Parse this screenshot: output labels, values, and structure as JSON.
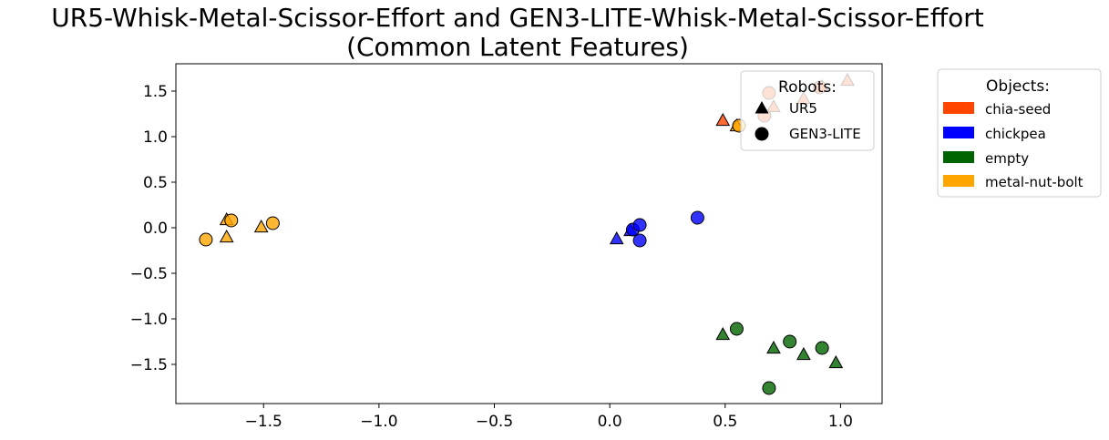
{
  "chart_data": {
    "type": "scatter",
    "title_line1": "UR5-Whisk-Metal-Scissor-Effort and GEN3-LITE-Whisk-Metal-Scissor-Effort",
    "title_line2": "(Common Latent Features)",
    "xlabel": "",
    "ylabel": "",
    "xlim": [
      -1.88,
      1.18
    ],
    "ylim": [
      -1.93,
      1.8
    ],
    "xticks": [
      -1.5,
      -1.0,
      -0.5,
      0.0,
      0.5,
      1.0
    ],
    "xtick_labels": [
      "−1.5",
      "−1.0",
      "−0.5",
      "0.0",
      "0.5",
      "1.0"
    ],
    "yticks": [
      1.5,
      1.0,
      0.5,
      0.0,
      -0.5,
      -1.0,
      -1.5
    ],
    "ytick_labels": [
      "1.5",
      "1.0",
      "0.5",
      "0.0",
      "−0.5",
      "−1.0",
      "−1.5"
    ],
    "grid": false,
    "robots_legend": {
      "title": "Robots:",
      "placement": "top-right",
      "items": [
        {
          "label": "UR5",
          "marker": "triangle"
        },
        {
          "label": "GEN3-LITE",
          "marker": "circle"
        }
      ]
    },
    "objects_legend": {
      "title": "Objects:",
      "placement": "outside-right",
      "items": [
        {
          "label": "chia-seed",
          "color": "#ff4500"
        },
        {
          "label": "chickpea",
          "color": "#0000ff"
        },
        {
          "label": "empty",
          "color": "#006400"
        },
        {
          "label": "metal-nut-bolt",
          "color": "#ffa500"
        }
      ]
    },
    "series": [
      {
        "object": "chia-seed",
        "robot": "UR5",
        "color": "#ff4500",
        "marker": "triangle",
        "points": [
          [
            0.49,
            1.18
          ],
          [
            0.71,
            1.33
          ],
          [
            0.84,
            1.42
          ],
          [
            0.92,
            1.55
          ],
          [
            1.03,
            1.62
          ]
        ]
      },
      {
        "object": "chia-seed",
        "robot": "GEN3-LITE",
        "color": "#ff4500",
        "marker": "circle",
        "points": [
          [
            0.67,
            1.23
          ],
          [
            0.69,
            1.48
          ],
          [
            0.91,
            1.54
          ]
        ]
      },
      {
        "object": "chickpea",
        "robot": "UR5",
        "color": "#0000ff",
        "marker": "triangle",
        "points": [
          [
            0.03,
            -0.12
          ],
          [
            0.09,
            -0.03
          ]
        ]
      },
      {
        "object": "chickpea",
        "robot": "GEN3-LITE",
        "color": "#0000ff",
        "marker": "circle",
        "points": [
          [
            0.1,
            -0.02
          ],
          [
            0.13,
            0.03
          ],
          [
            0.13,
            -0.14
          ],
          [
            0.38,
            0.11
          ]
        ]
      },
      {
        "object": "empty",
        "robot": "UR5",
        "color": "#006400",
        "marker": "triangle",
        "points": [
          [
            0.49,
            -1.17
          ],
          [
            0.71,
            -1.32
          ],
          [
            0.84,
            -1.39
          ],
          [
            0.98,
            -1.48
          ]
        ]
      },
      {
        "object": "empty",
        "robot": "GEN3-LITE",
        "color": "#006400",
        "marker": "circle",
        "points": [
          [
            0.55,
            -1.11
          ],
          [
            0.78,
            -1.25
          ],
          [
            0.92,
            -1.32
          ],
          [
            0.69,
            -1.76
          ]
        ]
      },
      {
        "object": "metal-nut-bolt",
        "robot": "UR5",
        "color": "#ffa500",
        "marker": "triangle",
        "points": [
          [
            -1.66,
            0.09
          ],
          [
            -1.66,
            -0.1
          ],
          [
            -1.51,
            0.01
          ],
          [
            0.55,
            1.12
          ]
        ]
      },
      {
        "object": "metal-nut-bolt",
        "robot": "GEN3-LITE",
        "color": "#ffa500",
        "marker": "circle",
        "points": [
          [
            -1.75,
            -0.13
          ],
          [
            -1.64,
            0.08
          ],
          [
            -1.46,
            0.05
          ],
          [
            0.56,
            1.12
          ]
        ]
      }
    ]
  }
}
